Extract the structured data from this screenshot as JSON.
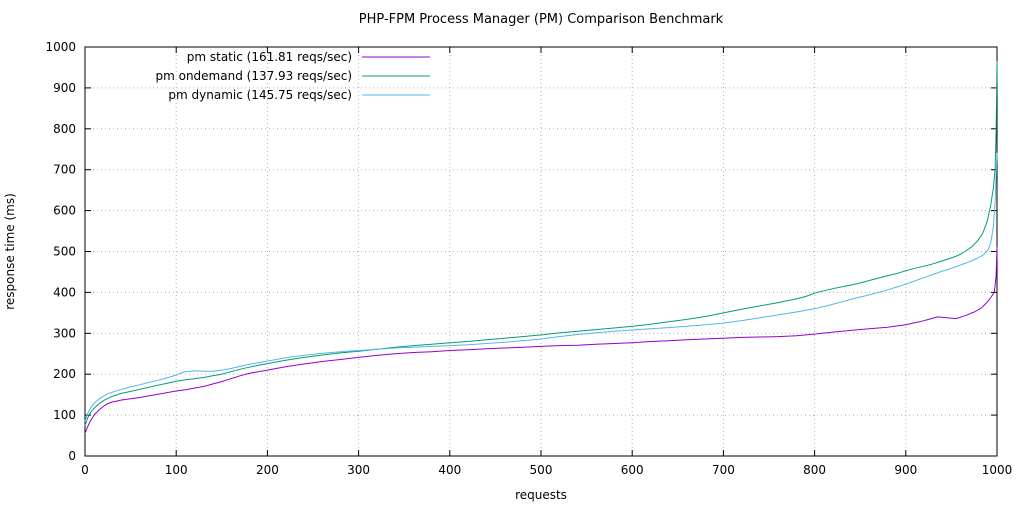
{
  "chart_data": {
    "type": "line",
    "title": "PHP-FPM Process Manager (PM) Comparison Benchmark",
    "xlabel": "requests",
    "ylabel": "response time (ms)",
    "xlim": [
      0,
      1000
    ],
    "ylim": [
      0,
      1000
    ],
    "xticks": [
      0,
      100,
      200,
      300,
      400,
      500,
      600,
      700,
      800,
      900,
      1000
    ],
    "yticks": [
      0,
      100,
      200,
      300,
      400,
      500,
      600,
      700,
      800,
      900,
      1000
    ],
    "grid": true,
    "legend_position": "top-left",
    "grid_color": "#b0b0b0",
    "border_color": "#000000",
    "series": [
      {
        "name": "pm static (161.81 reqs/sec)",
        "color": "#9400d3",
        "points": [
          [
            0,
            55
          ],
          [
            3,
            72
          ],
          [
            6,
            86
          ],
          [
            10,
            100
          ],
          [
            15,
            112
          ],
          [
            20,
            121
          ],
          [
            25,
            128
          ],
          [
            30,
            132
          ],
          [
            40,
            137
          ],
          [
            50,
            140
          ],
          [
            60,
            143
          ],
          [
            70,
            147
          ],
          [
            80,
            151
          ],
          [
            90,
            155
          ],
          [
            100,
            159
          ],
          [
            110,
            162
          ],
          [
            120,
            166
          ],
          [
            130,
            170
          ],
          [
            140,
            176
          ],
          [
            150,
            182
          ],
          [
            160,
            189
          ],
          [
            170,
            196
          ],
          [
            180,
            202
          ],
          [
            190,
            206
          ],
          [
            200,
            210
          ],
          [
            220,
            218
          ],
          [
            240,
            225
          ],
          [
            260,
            231
          ],
          [
            280,
            236
          ],
          [
            300,
            241
          ],
          [
            320,
            246
          ],
          [
            340,
            250
          ],
          [
            360,
            253
          ],
          [
            380,
            255
          ],
          [
            400,
            258
          ],
          [
            420,
            260
          ],
          [
            440,
            262
          ],
          [
            460,
            264
          ],
          [
            480,
            266
          ],
          [
            500,
            268
          ],
          [
            520,
            270
          ],
          [
            540,
            271
          ],
          [
            560,
            273
          ],
          [
            580,
            275
          ],
          [
            600,
            277
          ],
          [
            620,
            280
          ],
          [
            640,
            282
          ],
          [
            660,
            284
          ],
          [
            680,
            286
          ],
          [
            700,
            288
          ],
          [
            720,
            290
          ],
          [
            740,
            291
          ],
          [
            760,
            292
          ],
          [
            780,
            294
          ],
          [
            800,
            298
          ],
          [
            820,
            303
          ],
          [
            840,
            307
          ],
          [
            860,
            311
          ],
          [
            880,
            315
          ],
          [
            900,
            321
          ],
          [
            915,
            328
          ],
          [
            925,
            334
          ],
          [
            935,
            340
          ],
          [
            945,
            338
          ],
          [
            955,
            336
          ],
          [
            965,
            343
          ],
          [
            975,
            352
          ],
          [
            983,
            362
          ],
          [
            990,
            378
          ],
          [
            994,
            390
          ],
          [
            997,
            400
          ],
          [
            999,
            440
          ],
          [
            1000,
            510
          ]
        ]
      },
      {
        "name": "pm ondemand (137.93 reqs/sec)",
        "color": "#009e73",
        "points": [
          [
            0,
            75
          ],
          [
            3,
            93
          ],
          [
            6,
            106
          ],
          [
            10,
            117
          ],
          [
            15,
            127
          ],
          [
            20,
            135
          ],
          [
            25,
            141
          ],
          [
            30,
            146
          ],
          [
            40,
            153
          ],
          [
            50,
            158
          ],
          [
            60,
            163
          ],
          [
            70,
            168
          ],
          [
            80,
            173
          ],
          [
            90,
            178
          ],
          [
            100,
            183
          ],
          [
            110,
            186
          ],
          [
            120,
            189
          ],
          [
            130,
            192
          ],
          [
            140,
            196
          ],
          [
            150,
            200
          ],
          [
            160,
            206
          ],
          [
            170,
            212
          ],
          [
            180,
            217
          ],
          [
            190,
            222
          ],
          [
            200,
            226
          ],
          [
            220,
            234
          ],
          [
            240,
            241
          ],
          [
            260,
            247
          ],
          [
            280,
            252
          ],
          [
            300,
            256
          ],
          [
            320,
            261
          ],
          [
            340,
            266
          ],
          [
            360,
            270
          ],
          [
            380,
            273
          ],
          [
            400,
            277
          ],
          [
            420,
            280
          ],
          [
            440,
            284
          ],
          [
            460,
            288
          ],
          [
            480,
            292
          ],
          [
            500,
            296
          ],
          [
            520,
            301
          ],
          [
            540,
            305
          ],
          [
            560,
            309
          ],
          [
            580,
            313
          ],
          [
            600,
            317
          ],
          [
            620,
            322
          ],
          [
            640,
            328
          ],
          [
            660,
            334
          ],
          [
            680,
            341
          ],
          [
            700,
            350
          ],
          [
            720,
            359
          ],
          [
            740,
            367
          ],
          [
            760,
            375
          ],
          [
            780,
            384
          ],
          [
            790,
            390
          ],
          [
            800,
            398
          ],
          [
            810,
            404
          ],
          [
            820,
            409
          ],
          [
            830,
            414
          ],
          [
            840,
            418
          ],
          [
            850,
            423
          ],
          [
            860,
            429
          ],
          [
            870,
            435
          ],
          [
            880,
            441
          ],
          [
            890,
            446
          ],
          [
            900,
            453
          ],
          [
            910,
            459
          ],
          [
            920,
            464
          ],
          [
            930,
            470
          ],
          [
            940,
            477
          ],
          [
            950,
            484
          ],
          [
            958,
            491
          ],
          [
            965,
            500
          ],
          [
            972,
            511
          ],
          [
            978,
            524
          ],
          [
            984,
            543
          ],
          [
            989,
            572
          ],
          [
            993,
            612
          ],
          [
            996,
            655
          ],
          [
            998,
            705
          ],
          [
            999,
            790
          ],
          [
            1000,
            965
          ]
        ]
      },
      {
        "name": "pm dynamic (145.75 reqs/sec)",
        "color": "#56b4e9",
        "points": [
          [
            0,
            85
          ],
          [
            3,
            104
          ],
          [
            6,
            117
          ],
          [
            10,
            129
          ],
          [
            15,
            139
          ],
          [
            20,
            146
          ],
          [
            25,
            152
          ],
          [
            30,
            156
          ],
          [
            40,
            163
          ],
          [
            50,
            169
          ],
          [
            60,
            174
          ],
          [
            70,
            180
          ],
          [
            80,
            185
          ],
          [
            90,
            191
          ],
          [
            100,
            198
          ],
          [
            105,
            203
          ],
          [
            110,
            206
          ],
          [
            120,
            208
          ],
          [
            130,
            207
          ],
          [
            140,
            207
          ],
          [
            150,
            210
          ],
          [
            160,
            214
          ],
          [
            170,
            219
          ],
          [
            180,
            224
          ],
          [
            190,
            228
          ],
          [
            200,
            232
          ],
          [
            220,
            240
          ],
          [
            240,
            246
          ],
          [
            260,
            251
          ],
          [
            280,
            255
          ],
          [
            300,
            258
          ],
          [
            320,
            261
          ],
          [
            340,
            264
          ],
          [
            360,
            266
          ],
          [
            380,
            268
          ],
          [
            400,
            270
          ],
          [
            420,
            272
          ],
          [
            440,
            275
          ],
          [
            460,
            278
          ],
          [
            480,
            282
          ],
          [
            500,
            286
          ],
          [
            520,
            292
          ],
          [
            540,
            297
          ],
          [
            560,
            301
          ],
          [
            580,
            305
          ],
          [
            600,
            308
          ],
          [
            620,
            311
          ],
          [
            640,
            314
          ],
          [
            660,
            317
          ],
          [
            680,
            321
          ],
          [
            700,
            325
          ],
          [
            720,
            331
          ],
          [
            740,
            338
          ],
          [
            760,
            345
          ],
          [
            780,
            352
          ],
          [
            800,
            360
          ],
          [
            815,
            368
          ],
          [
            830,
            377
          ],
          [
            845,
            386
          ],
          [
            860,
            394
          ],
          [
            875,
            403
          ],
          [
            890,
            413
          ],
          [
            900,
            420
          ],
          [
            910,
            428
          ],
          [
            920,
            436
          ],
          [
            930,
            444
          ],
          [
            940,
            452
          ],
          [
            950,
            459
          ],
          [
            960,
            467
          ],
          [
            970,
            475
          ],
          [
            978,
            483
          ],
          [
            985,
            492
          ],
          [
            990,
            503
          ],
          [
            993,
            520
          ],
          [
            996,
            560
          ],
          [
            998,
            625
          ],
          [
            999,
            685
          ],
          [
            1000,
            740
          ]
        ]
      }
    ]
  }
}
